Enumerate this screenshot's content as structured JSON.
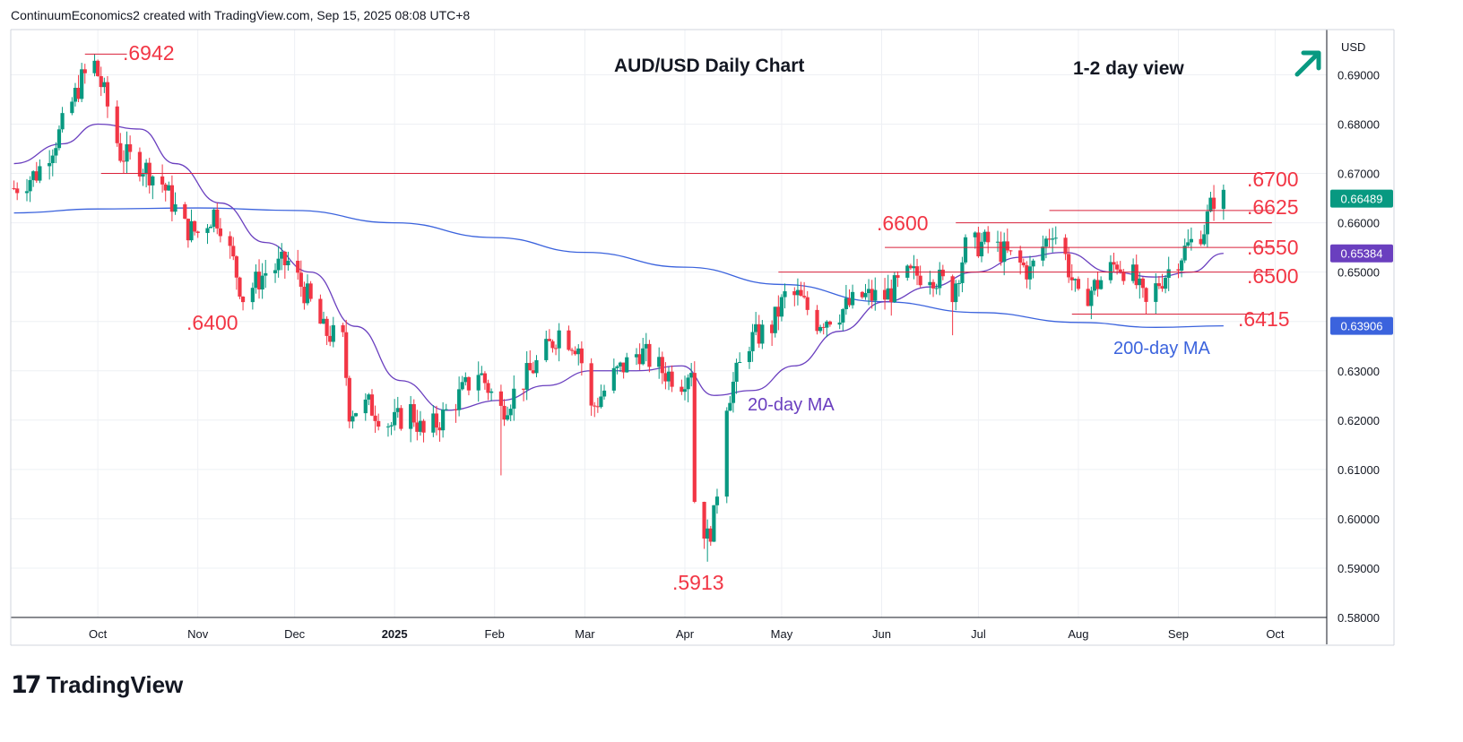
{
  "header": {
    "attribution": "ContinuumEconomics2 created with TradingView.com, Sep 15, 2025 08:08 UTC+8"
  },
  "branding": {
    "logo_mark": "17",
    "name": "TradingView"
  },
  "colors": {
    "up": "#089981",
    "down": "#f23645",
    "ma20": "#6a3fbf",
    "ma200": "#3b63dd",
    "level_line": "#d9213a",
    "annotation": "#f23645",
    "arrow": "#089981",
    "grid": "#eef0f4"
  },
  "view_icon": "arrow-up-right-icon",
  "chart_data": {
    "type": "candlestick",
    "title": "AUD/USD Daily Chart",
    "view_label": "1-2 day view",
    "currency": "USD",
    "ylim": [
      0.58,
      0.695
    ],
    "yticks": [
      "0.58000",
      "0.59000",
      "0.60000",
      "0.61000",
      "0.62000",
      "0.63000",
      "0.64000",
      "0.65000",
      "0.66000",
      "0.67000",
      "0.68000",
      "0.69000"
    ],
    "xticks": [
      "Oct",
      "Nov",
      "Dec",
      "2025",
      "Feb",
      "Mar",
      "Apr",
      "May",
      "Jun",
      "Jul",
      "Aug",
      "Sep",
      "Oct"
    ],
    "price_badges": [
      {
        "value": "0.66489",
        "color": "#089981"
      },
      {
        "value": "0.65384",
        "color": "#6a3fbf"
      },
      {
        "value": "0.63906",
        "color": "#3b63dd"
      }
    ],
    "levels": [
      {
        "label": ".6942",
        "value": 0.6942,
        "start": "2024-09-27",
        "end": "2024-10-10"
      },
      {
        "label": ".6700",
        "value": 0.67,
        "start": "2024-10-02",
        "end": "2025-09-30"
      },
      {
        "label": ".6625",
        "value": 0.6625,
        "start": "2025-07-23",
        "end": "2025-09-30"
      },
      {
        "label": ".6600",
        "value": 0.66,
        "start": "2025-06-24",
        "end": "2025-09-30"
      },
      {
        "label": ".6550",
        "value": 0.655,
        "start": "2025-06-02",
        "end": "2025-09-30"
      },
      {
        "label": ".6500",
        "value": 0.65,
        "start": "2025-04-30",
        "end": "2025-09-30"
      },
      {
        "label": ".6415",
        "value": 0.6415,
        "start": "2025-07-30",
        "end": "2025-09-30"
      }
    ],
    "annotations": [
      {
        "text": ".6400",
        "color": "#f23645"
      },
      {
        "text": ".5913",
        "color": "#f23645"
      },
      {
        "text": "20-day MA",
        "color": "#6a3fbf"
      },
      {
        "text": "200-day MA",
        "color": "#3b63dd"
      }
    ],
    "anchors": [
      [
        "2024-09-05",
        0.667
      ],
      [
        "2024-09-12",
        0.67
      ],
      [
        "2024-09-19",
        0.678
      ],
      [
        "2024-09-26",
        0.689
      ],
      [
        "2024-09-30",
        0.692
      ],
      [
        "2024-10-03",
        0.686
      ],
      [
        "2024-10-08",
        0.674
      ],
      [
        "2024-10-14",
        0.672
      ],
      [
        "2024-10-21",
        0.668
      ],
      [
        "2024-10-28",
        0.659
      ],
      [
        "2024-11-01",
        0.658
      ],
      [
        "2024-11-06",
        0.662
      ],
      [
        "2024-11-08",
        0.66
      ],
      [
        "2024-11-12",
        0.652
      ],
      [
        "2024-11-15",
        0.645
      ],
      [
        "2024-11-22",
        0.65
      ],
      [
        "2024-11-29",
        0.652
      ],
      [
        "2024-12-05",
        0.645
      ],
      [
        "2024-12-10",
        0.638
      ],
      [
        "2024-12-16",
        0.636
      ],
      [
        "2024-12-18",
        0.622
      ],
      [
        "2024-12-24",
        0.623
      ],
      [
        "2024-12-31",
        0.619
      ],
      [
        "2025-01-06",
        0.622
      ],
      [
        "2025-01-10",
        0.617
      ],
      [
        "2025-01-15",
        0.62
      ],
      [
        "2025-01-20",
        0.624
      ],
      [
        "2025-01-27",
        0.63
      ],
      [
        "2025-02-03",
        0.622
      ],
      [
        "2025-02-10",
        0.628
      ],
      [
        "2025-02-17",
        0.634
      ],
      [
        "2025-02-21",
        0.638
      ],
      [
        "2025-02-27",
        0.635
      ],
      [
        "2025-03-03",
        0.622
      ],
      [
        "2025-03-10",
        0.629
      ],
      [
        "2025-03-18",
        0.634
      ],
      [
        "2025-03-25",
        0.63
      ],
      [
        "2025-03-31",
        0.628
      ],
      [
        "2025-04-03",
        0.631
      ],
      [
        "2025-04-04",
        0.604
      ],
      [
        "2025-04-08",
        0.596
      ],
      [
        "2025-04-10",
        0.6
      ],
      [
        "2025-04-14",
        0.624
      ],
      [
        "2025-04-21",
        0.636
      ],
      [
        "2025-04-28",
        0.639
      ],
      [
        "2025-05-02",
        0.645
      ],
      [
        "2025-05-06",
        0.645
      ],
      [
        "2025-05-12",
        0.64
      ],
      [
        "2025-05-19",
        0.642
      ],
      [
        "2025-05-26",
        0.645
      ],
      [
        "2025-06-02",
        0.645
      ],
      [
        "2025-06-09",
        0.649
      ],
      [
        "2025-06-16",
        0.65
      ],
      [
        "2025-06-23",
        0.646
      ],
      [
        "2025-06-27",
        0.655
      ],
      [
        "2025-07-04",
        0.656
      ],
      [
        "2025-07-11",
        0.653
      ],
      [
        "2025-07-17",
        0.65
      ],
      [
        "2025-07-24",
        0.659
      ],
      [
        "2025-07-28",
        0.653
      ],
      [
        "2025-08-01",
        0.644
      ],
      [
        "2025-08-06",
        0.647
      ],
      [
        "2025-08-13",
        0.652
      ],
      [
        "2025-08-18",
        0.649
      ],
      [
        "2025-08-22",
        0.643
      ],
      [
        "2025-08-26",
        0.648
      ],
      [
        "2025-09-01",
        0.653
      ],
      [
        "2025-09-05",
        0.656
      ],
      [
        "2025-09-09",
        0.659
      ],
      [
        "2025-09-12",
        0.665
      ],
      [
        "2025-09-15",
        0.6649
      ]
    ],
    "lows": [
      {
        "date": "2024-09-30",
        "high": 0.6942
      },
      {
        "date": "2025-02-03",
        "low": 0.6088
      },
      {
        "date": "2025-04-08",
        "low": 0.5913
      },
      {
        "date": "2025-06-23",
        "low": 0.6372
      }
    ],
    "ma20_anchors": [
      [
        "2024-09-05",
        0.672
      ],
      [
        "2024-09-20",
        0.676
      ],
      [
        "2024-10-01",
        0.68
      ],
      [
        "2024-10-14",
        0.679
      ],
      [
        "2024-10-25",
        0.672
      ],
      [
        "2024-11-08",
        0.664
      ],
      [
        "2024-11-22",
        0.656
      ],
      [
        "2024-12-06",
        0.65
      ],
      [
        "2024-12-20",
        0.639
      ],
      [
        "2025-01-03",
        0.628
      ],
      [
        "2025-01-17",
        0.622
      ],
      [
        "2025-02-03",
        0.624
      ],
      [
        "2025-02-17",
        0.627
      ],
      [
        "2025-03-03",
        0.63
      ],
      [
        "2025-03-17",
        0.63
      ],
      [
        "2025-03-31",
        0.631
      ],
      [
        "2025-04-10",
        0.625
      ],
      [
        "2025-04-22",
        0.626
      ],
      [
        "2025-05-05",
        0.631
      ],
      [
        "2025-05-19",
        0.638
      ],
      [
        "2025-06-02",
        0.644
      ],
      [
        "2025-06-16",
        0.647
      ],
      [
        "2025-06-30",
        0.65
      ],
      [
        "2025-07-14",
        0.653
      ],
      [
        "2025-07-28",
        0.654
      ],
      [
        "2025-08-11",
        0.65
      ],
      [
        "2025-08-25",
        0.649
      ],
      [
        "2025-09-05",
        0.65
      ],
      [
        "2025-09-15",
        0.6538
      ]
    ],
    "ma200_anchors": [
      [
        "2024-09-05",
        0.662
      ],
      [
        "2024-10-01",
        0.6628
      ],
      [
        "2024-11-01",
        0.663
      ],
      [
        "2024-12-01",
        0.6625
      ],
      [
        "2025-01-01",
        0.66
      ],
      [
        "2025-02-01",
        0.657
      ],
      [
        "2025-03-01",
        0.654
      ],
      [
        "2025-04-01",
        0.651
      ],
      [
        "2025-05-01",
        0.6475
      ],
      [
        "2025-06-01",
        0.644
      ],
      [
        "2025-07-01",
        0.6418
      ],
      [
        "2025-08-01",
        0.6398
      ],
      [
        "2025-08-25",
        0.6388
      ],
      [
        "2025-09-15",
        0.6391
      ]
    ]
  }
}
